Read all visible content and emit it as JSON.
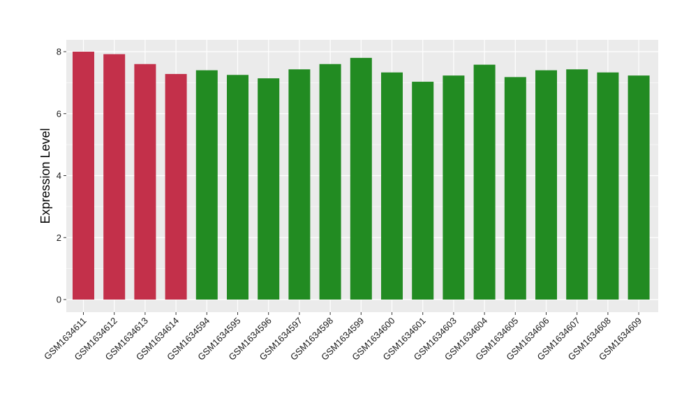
{
  "chart_data": {
    "type": "bar",
    "title": "",
    "xlabel": "",
    "ylabel": "Expression Level",
    "ylim": [
      0,
      8.4
    ],
    "yticks": [
      0,
      2,
      4,
      6,
      8
    ],
    "grid": true,
    "legend": "none",
    "categories": [
      "GSM1634611",
      "GSM1634612",
      "GSM1634613",
      "GSM1634614",
      "GSM1634594",
      "GSM1634595",
      "GSM1634596",
      "GSM1634597",
      "GSM1634598",
      "GSM1634599",
      "GSM1634600",
      "GSM1634601",
      "GSM1634603",
      "GSM1634604",
      "GSM1634605",
      "GSM1634606",
      "GSM1634607",
      "GSM1634608",
      "GSM1634609"
    ],
    "values": [
      8.0,
      7.92,
      7.6,
      7.28,
      7.4,
      7.25,
      7.14,
      7.43,
      7.6,
      7.8,
      7.33,
      7.03,
      7.23,
      7.58,
      7.18,
      7.4,
      7.43,
      7.33,
      7.23
    ],
    "groups": [
      "a",
      "a",
      "a",
      "a",
      "b",
      "b",
      "b",
      "b",
      "b",
      "b",
      "b",
      "b",
      "b",
      "b",
      "b",
      "b",
      "b",
      "b",
      "b"
    ],
    "colors": {
      "a": "#c3304a",
      "b": "#228b22",
      "panel": "#ebebeb",
      "grid": "#ffffff"
    }
  }
}
